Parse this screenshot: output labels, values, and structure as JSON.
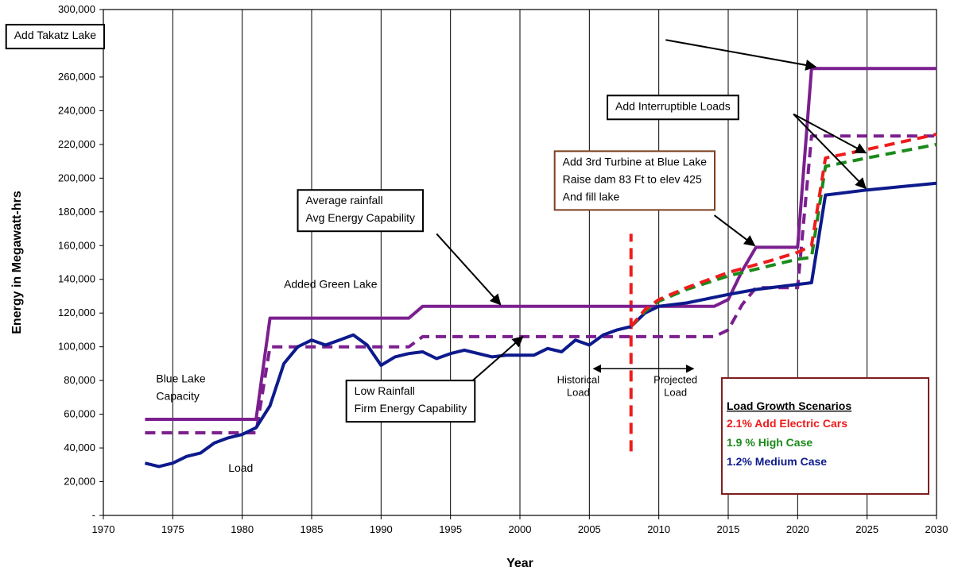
{
  "chart_data": {
    "type": "line",
    "xlabel": "Year",
    "ylabel": "Energy in Megawatt-hrs",
    "xlim": [
      1970,
      2030
    ],
    "ylim": [
      0,
      300000
    ],
    "x_ticks": [
      "1970",
      "1975",
      "1980",
      "1985",
      "1990",
      "1995",
      "2000",
      "2005",
      "2010",
      "2015",
      "2020",
      "2025",
      "2030"
    ],
    "y_ticks": [
      "-",
      "20,000",
      "40,000",
      "60,000",
      "80,000",
      "100,000",
      "120,000",
      "140,000",
      "160,000",
      "180,000",
      "200,000",
      "220,000",
      "240,000",
      "260,000",
      "280,000",
      "300,000"
    ],
    "grid": "vertical",
    "series": [
      {
        "key": "avg_capability",
        "color": "#7b1f8f",
        "style": "solid",
        "width": 4,
        "points": [
          [
            1973,
            57000
          ],
          [
            1981,
            57000
          ],
          [
            1982,
            117000
          ],
          [
            1992,
            117000
          ],
          [
            1993,
            124000
          ],
          [
            2014,
            124000
          ],
          [
            2015,
            128000
          ],
          [
            2016,
            145000
          ],
          [
            2017,
            159000
          ],
          [
            2020,
            159000
          ],
          [
            2021,
            265000
          ],
          [
            2030,
            265000
          ]
        ]
      },
      {
        "key": "firm_capability",
        "color": "#7b1f8f",
        "style": "dashed",
        "width": 4,
        "points": [
          [
            1973,
            49000
          ],
          [
            1981,
            49000
          ],
          [
            1982,
            100000
          ],
          [
            1992,
            100000
          ],
          [
            1993,
            106000
          ],
          [
            2014,
            106000
          ],
          [
            2015,
            110000
          ],
          [
            2016,
            125000
          ],
          [
            2017,
            135000
          ],
          [
            2020,
            135000
          ],
          [
            2021,
            225000
          ],
          [
            2030,
            225000
          ]
        ]
      },
      {
        "key": "load_historical",
        "color": "#0d1a8c",
        "style": "solid",
        "width": 4,
        "points": [
          [
            1973,
            31000
          ],
          [
            1974,
            29000
          ],
          [
            1975,
            31000
          ],
          [
            1976,
            35000
          ],
          [
            1977,
            37000
          ],
          [
            1978,
            43000
          ],
          [
            1979,
            46000
          ],
          [
            1980,
            48000
          ],
          [
            1981,
            52000
          ],
          [
            1982,
            65000
          ],
          [
            1983,
            90000
          ],
          [
            1984,
            100000
          ],
          [
            1985,
            104000
          ],
          [
            1986,
            101000
          ],
          [
            1987,
            104000
          ],
          [
            1988,
            107000
          ],
          [
            1989,
            101000
          ],
          [
            1990,
            89000
          ],
          [
            1991,
            94000
          ],
          [
            1992,
            96000
          ],
          [
            1993,
            97000
          ],
          [
            1994,
            93000
          ],
          [
            1995,
            96000
          ],
          [
            1996,
            98000
          ],
          [
            1997,
            96000
          ],
          [
            1998,
            94000
          ],
          [
            1999,
            95000
          ],
          [
            2000,
            95000
          ],
          [
            2001,
            95000
          ],
          [
            2002,
            99000
          ],
          [
            2003,
            97000
          ],
          [
            2004,
            104000
          ],
          [
            2005,
            101000
          ],
          [
            2006,
            107000
          ],
          [
            2007,
            110000
          ],
          [
            2008,
            112000
          ]
        ]
      },
      {
        "key": "medium_case",
        "name": "1.2% Medium Case",
        "color": "#0d1a8c",
        "style": "solid",
        "width": 4,
        "points": [
          [
            2008,
            112000
          ],
          [
            2009,
            120000
          ],
          [
            2010,
            124000
          ],
          [
            2012,
            126000
          ],
          [
            2015,
            131000
          ],
          [
            2017,
            134000
          ],
          [
            2020,
            137000
          ],
          [
            2021,
            138000
          ],
          [
            2022,
            190000
          ],
          [
            2025,
            193000
          ],
          [
            2030,
            197000
          ]
        ]
      },
      {
        "key": "high_case",
        "name": "1.9 % High Case",
        "color": "#1a8a1a",
        "style": "dashed",
        "width": 4,
        "points": [
          [
            2008,
            112000
          ],
          [
            2009,
            121000
          ],
          [
            2010,
            127000
          ],
          [
            2012,
            134000
          ],
          [
            2015,
            142000
          ],
          [
            2018,
            148000
          ],
          [
            2020,
            152000
          ],
          [
            2021,
            153000
          ],
          [
            2022,
            207000
          ],
          [
            2025,
            212000
          ],
          [
            2030,
            220000
          ]
        ]
      },
      {
        "key": "electric_cars",
        "name": "2.1% Add Electric Cars",
        "color": "#ee1c1c",
        "style": "dashed",
        "width": 4,
        "points": [
          [
            2008,
            112000
          ],
          [
            2009,
            122000
          ],
          [
            2010,
            128000
          ],
          [
            2012,
            135000
          ],
          [
            2015,
            144000
          ],
          [
            2018,
            151000
          ],
          [
            2020,
            156000
          ],
          [
            2021,
            160000
          ],
          [
            2022,
            212000
          ],
          [
            2025,
            217000
          ],
          [
            2030,
            226000
          ]
        ]
      }
    ],
    "divider": {
      "x": 2008,
      "y_range": [
        38000,
        167000
      ],
      "color": "#ee1c1c"
    },
    "annotations": [
      {
        "key": "takatz",
        "lines": [
          "Add Takatz Lake"
        ],
        "boxed": true,
        "border": "#000000",
        "x": 1963,
        "y": 291000,
        "arrows": [
          {
            "from": [
              2010.5,
              282000
            ],
            "to": [
              2021.3,
              266000
            ]
          }
        ]
      },
      {
        "key": "interruptible",
        "lines": [
          "Add Interruptible Loads"
        ],
        "boxed": true,
        "border": "#000000",
        "x": 2006.3,
        "y": 249000,
        "arrows": [
          {
            "from": [
              2019.7,
              238000
            ],
            "to": [
              2024.9,
              215000
            ]
          },
          {
            "from": [
              2019.7,
              238000
            ],
            "to": [
              2024.9,
              194000
            ]
          }
        ]
      },
      {
        "key": "turbine",
        "lines": [
          "Add 3rd Turbine at Blue Lake",
          "Raise dam 83 Ft to elev 425",
          "And fill lake"
        ],
        "boxed": true,
        "border": "#7f3f1f",
        "x": 2002.5,
        "y": 216000,
        "arrows": [
          {
            "from": [
              2014,
              178000
            ],
            "to": [
              2016.9,
              160000
            ]
          }
        ]
      },
      {
        "key": "avg_rainfall",
        "lines": [
          "Average rainfall",
          "Avg Energy Capability"
        ],
        "boxed": true,
        "border": "#000000",
        "x": 1984,
        "y": 193000,
        "arrows": [
          {
            "from": [
              1994,
              167000
            ],
            "to": [
              1998.6,
              125000
            ]
          }
        ]
      },
      {
        "key": "low_rainfall",
        "lines": [
          "Low Rainfall",
          "Firm Energy Capability"
        ],
        "boxed": true,
        "border": "#000000",
        "x": 1987.5,
        "y": 80000,
        "arrows": [
          {
            "from": [
              1996.6,
              80000
            ],
            "to": [
              2000.2,
              106000
            ]
          }
        ]
      },
      {
        "key": "green_lake",
        "lines": [
          "Added Green Lake"
        ],
        "boxed": false,
        "x": 1983,
        "y": 135000
      },
      {
        "key": "blue_lake",
        "lines": [
          "Blue Lake",
          "Capacity"
        ],
        "boxed": false,
        "x": 1973.8,
        "y": 79000
      },
      {
        "key": "load",
        "lines": [
          "Load"
        ],
        "boxed": false,
        "x": 1979,
        "y": 26000
      },
      {
        "key": "historical",
        "lines": [
          "Historical",
          "Load"
        ],
        "boxed": false,
        "small": true,
        "center": true,
        "x": 2004.2,
        "y": 78500
      },
      {
        "key": "projected",
        "lines": [
          "Projected",
          "Load"
        ],
        "boxed": false,
        "small": true,
        "center": true,
        "x": 2011.2,
        "y": 78500
      }
    ],
    "hist_proj_arrow": {
      "from": 2005.3,
      "to": 2012.5,
      "y": 87000
    },
    "legend": {
      "title": "Load Growth Scenarios",
      "placement": "bottom-right",
      "items": [
        {
          "label": "2.1% Add Electric Cars",
          "color": "#ee1c1c"
        },
        {
          "label": "1.9 % High Case",
          "color": "#1a8a1a"
        },
        {
          "label": "1.2% Medium Case",
          "color": "#0d1a8c"
        }
      ]
    }
  }
}
